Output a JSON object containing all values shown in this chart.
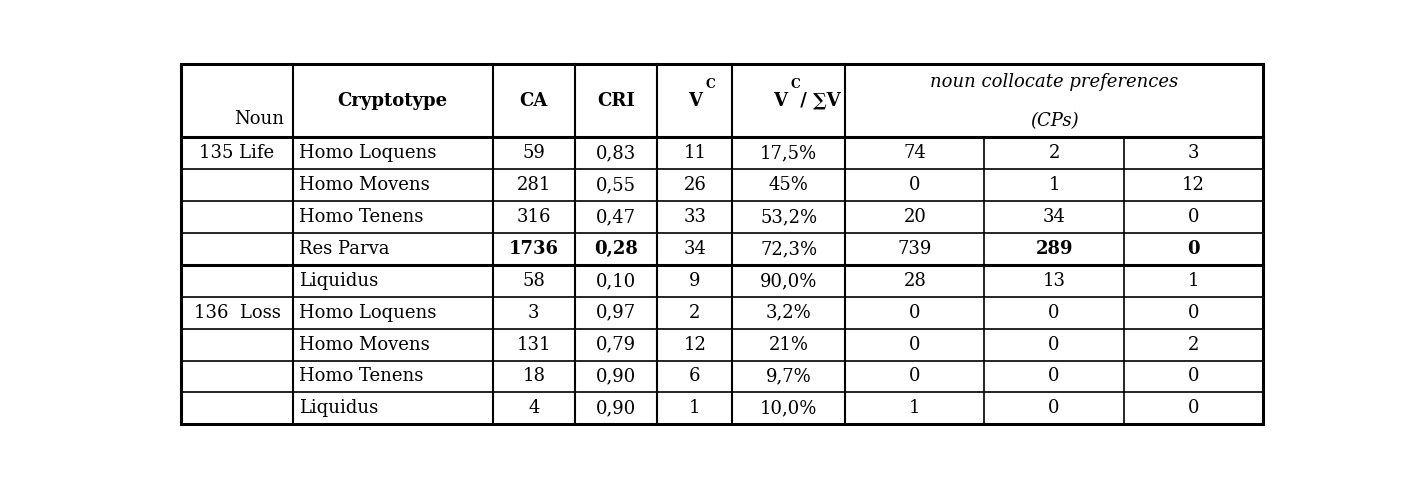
{
  "rows": [
    {
      "noun_label": "135 Life",
      "cryptotype": "Homo Loquens",
      "CA": "59",
      "CRI": "0,83",
      "VC": "11",
      "VCV": "17,5%",
      "cp1": "74",
      "cp2": "2",
      "cp3": "3",
      "bold": false
    },
    {
      "noun_label": "",
      "cryptotype": "Homo Movens",
      "CA": "281",
      "CRI": "0,55",
      "VC": "26",
      "VCV": "45%",
      "cp1": "0",
      "cp2": "1",
      "cp3": "12",
      "bold": false
    },
    {
      "noun_label": "",
      "cryptotype": "Homo Tenens",
      "CA": "316",
      "CRI": "0,47",
      "VC": "33",
      "VCV": "53,2%",
      "cp1": "20",
      "cp2": "34",
      "cp3": "0",
      "bold": false
    },
    {
      "noun_label": "",
      "cryptotype": "Res Parva",
      "CA": "1736",
      "CRI": "0,28",
      "VC": "34",
      "VCV": "72,3%",
      "cp1": "739",
      "cp2": "289",
      "cp3": "0",
      "bold": true
    },
    {
      "noun_label": "",
      "cryptotype": "Liquidus",
      "CA": "58",
      "CRI": "0,10",
      "VC": "9",
      "VCV": "90,0%",
      "cp1": "28",
      "cp2": "13",
      "cp3": "1",
      "bold": false
    },
    {
      "noun_label": "136  Loss",
      "cryptotype": "Homo Loquens",
      "CA": "3",
      "CRI": "0,97",
      "VC": "2",
      "VCV": "3,2%",
      "cp1": "0",
      "cp2": "0",
      "cp3": "0",
      "bold": false
    },
    {
      "noun_label": "",
      "cryptotype": "Homo Movens",
      "CA": "131",
      "CRI": "0,79",
      "VC": "12",
      "VCV": "21%",
      "cp1": "0",
      "cp2": "0",
      "cp3": "2",
      "bold": false
    },
    {
      "noun_label": "",
      "cryptotype": "Homo Tenens",
      "CA": "18",
      "CRI": "0,90",
      "VC": "6",
      "VCV": "9,7%",
      "cp1": "0",
      "cp2": "0",
      "cp3": "0",
      "bold": false
    },
    {
      "noun_label": "",
      "cryptotype": "Liquidus",
      "CA": "4",
      "CRI": "0,90",
      "VC": "1",
      "VCV": "10,0%",
      "cp1": "1",
      "cp2": "0",
      "cp3": "0",
      "bold": false
    }
  ],
  "noun_groups": [
    {
      "label": "135 Life",
      "first": 0,
      "last": 4
    },
    {
      "label": "136  Loss",
      "first": 5,
      "last": 8
    }
  ],
  "group_separator_after": 4,
  "bg_color": "#ffffff",
  "font_family": "serif",
  "base_fontsize": 13.0
}
